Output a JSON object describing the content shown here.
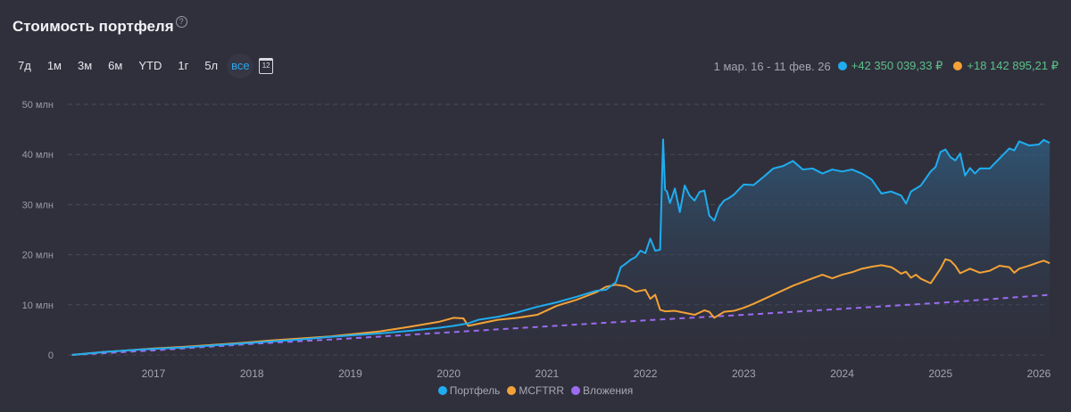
{
  "header": {
    "title": "Стоимость портфеля",
    "help_icon": "?"
  },
  "periods": [
    {
      "label": "7д",
      "active": false
    },
    {
      "label": "1м",
      "active": false
    },
    {
      "label": "3м",
      "active": false
    },
    {
      "label": "6м",
      "active": false
    },
    {
      "label": "YTD",
      "active": false
    },
    {
      "label": "1г",
      "active": false
    },
    {
      "label": "5л",
      "active": false
    },
    {
      "label": "все",
      "active": true
    }
  ],
  "calendar": {
    "icon": "calendar-icon",
    "day": "12"
  },
  "summary": {
    "range": "1 мар. 16 - 11 фев. 26",
    "portfolio_gain": "+42 350 039,33 ₽",
    "index_gain": "+18 142 895,21 ₽"
  },
  "colors": {
    "portfolio": "#1fadf0",
    "index": "#f4a236",
    "investments": "#9b6cf0",
    "gain": "#5cc08a",
    "background": "#30303c"
  },
  "chart_data": {
    "type": "line",
    "title": "Стоимость портфеля",
    "xlabel": "",
    "ylabel": "",
    "ylim": [
      0,
      50
    ],
    "y_unit": "млн",
    "xlim": [
      2016.17,
      2026.11
    ],
    "grid": true,
    "legend_position": "bottom",
    "y_ticks": [
      {
        "value": 0,
        "label": "0"
      },
      {
        "value": 10,
        "label": "10 млн"
      },
      {
        "value": 20,
        "label": "20 млн"
      },
      {
        "value": 30,
        "label": "30 млн"
      },
      {
        "value": 40,
        "label": "40 млн"
      },
      {
        "value": 50,
        "label": "50 млн"
      }
    ],
    "x_ticks": [
      "2017",
      "2018",
      "2019",
      "2020",
      "2021",
      "2022",
      "2023",
      "2024",
      "2025",
      "2026"
    ],
    "x_tick_values": [
      2017,
      2018,
      2019,
      2020,
      2021,
      2022,
      2023,
      2024,
      2025,
      2026
    ],
    "series": [
      {
        "name": "Портфель",
        "key": "portfolio",
        "x": [
          2016.17,
          2016.5,
          2016.8,
          2017.0,
          2017.3,
          2017.6,
          2017.9,
          2018.2,
          2018.5,
          2018.8,
          2019.0,
          2019.3,
          2019.6,
          2019.9,
          2020.05,
          2020.2,
          2020.3,
          2020.5,
          2020.7,
          2020.9,
          2021.1,
          2021.3,
          2021.5,
          2021.6,
          2021.7,
          2021.75,
          2021.8,
          2021.85,
          2021.9,
          2021.95,
          2022.0,
          2022.05,
          2022.1,
          2022.15,
          2022.18,
          2022.2,
          2022.22,
          2022.25,
          2022.3,
          2022.35,
          2022.4,
          2022.45,
          2022.5,
          2022.55,
          2022.6,
          2022.65,
          2022.7,
          2022.75,
          2022.8,
          2022.85,
          2022.9,
          2023.0,
          2023.1,
          2023.2,
          2023.3,
          2023.4,
          2023.5,
          2023.6,
          2023.7,
          2023.8,
          2023.9,
          2024.0,
          2024.1,
          2024.2,
          2024.3,
          2024.4,
          2024.5,
          2024.6,
          2024.65,
          2024.7,
          2024.8,
          2024.9,
          2024.95,
          2025.0,
          2025.05,
          2025.1,
          2025.15,
          2025.2,
          2025.25,
          2025.3,
          2025.35,
          2025.4,
          2025.5,
          2025.6,
          2025.7,
          2025.75,
          2025.8,
          2025.9,
          2026.0,
          2026.05,
          2026.11
        ],
        "values": [
          0.0,
          0.6,
          1.0,
          1.2,
          1.5,
          1.9,
          2.3,
          2.7,
          3.1,
          3.6,
          3.9,
          4.3,
          4.8,
          5.4,
          5.8,
          6.3,
          7.0,
          7.6,
          8.5,
          9.6,
          10.5,
          11.6,
          12.8,
          13.0,
          14.5,
          17.5,
          18.2,
          19.0,
          19.5,
          20.8,
          20.3,
          23.2,
          20.8,
          21.0,
          43.0,
          33.0,
          32.6,
          30.3,
          33.2,
          28.5,
          33.8,
          31.8,
          30.8,
          32.5,
          32.8,
          27.8,
          26.8,
          29.5,
          30.8,
          31.3,
          32.0,
          34.0,
          33.9,
          35.5,
          37.2,
          37.7,
          38.7,
          37.0,
          37.2,
          36.2,
          37.0,
          36.6,
          37.0,
          36.2,
          35.0,
          32.2,
          32.6,
          31.8,
          30.2,
          32.6,
          33.8,
          36.6,
          37.5,
          40.5,
          41.0,
          39.5,
          38.8,
          40.2,
          35.8,
          37.3,
          36.2,
          37.2,
          37.2,
          39.2,
          41.2,
          40.8,
          42.6,
          41.8,
          42.0,
          42.9,
          42.3
        ]
      },
      {
        "name": "MCFTRR",
        "key": "index",
        "x": [
          2016.17,
          2016.5,
          2016.8,
          2017.0,
          2017.3,
          2017.6,
          2017.9,
          2018.2,
          2018.5,
          2018.8,
          2019.0,
          2019.3,
          2019.6,
          2019.9,
          2020.05,
          2020.15,
          2020.2,
          2020.3,
          2020.5,
          2020.7,
          2020.9,
          2021.1,
          2021.3,
          2021.5,
          2021.6,
          2021.7,
          2021.8,
          2021.9,
          2022.0,
          2022.05,
          2022.1,
          2022.15,
          2022.2,
          2022.3,
          2022.4,
          2022.5,
          2022.6,
          2022.65,
          2022.7,
          2022.8,
          2022.9,
          2023.0,
          2023.1,
          2023.3,
          2023.5,
          2023.7,
          2023.8,
          2023.9,
          2024.0,
          2024.1,
          2024.2,
          2024.3,
          2024.4,
          2024.5,
          2024.55,
          2024.6,
          2024.65,
          2024.7,
          2024.75,
          2024.8,
          2024.9,
          2025.0,
          2025.05,
          2025.1,
          2025.15,
          2025.2,
          2025.3,
          2025.4,
          2025.5,
          2025.6,
          2025.7,
          2025.75,
          2025.8,
          2025.9,
          2026.0,
          2026.05,
          2026.11
        ],
        "values": [
          0.0,
          0.6,
          1.0,
          1.3,
          1.6,
          2.0,
          2.4,
          2.9,
          3.3,
          3.7,
          4.1,
          4.7,
          5.6,
          6.6,
          7.4,
          7.3,
          5.8,
          6.2,
          7.0,
          7.4,
          8.0,
          9.8,
          11.0,
          12.5,
          13.6,
          14.0,
          13.7,
          12.6,
          13.0,
          11.2,
          12.0,
          9.0,
          8.7,
          8.8,
          8.4,
          8.0,
          8.9,
          8.6,
          7.4,
          8.6,
          8.8,
          9.4,
          10.2,
          12.0,
          13.8,
          15.3,
          16.0,
          15.3,
          16.0,
          16.5,
          17.2,
          17.6,
          17.9,
          17.5,
          16.9,
          16.2,
          16.6,
          15.4,
          16.0,
          15.2,
          14.3,
          17.2,
          19.1,
          18.8,
          17.8,
          16.3,
          17.2,
          16.4,
          16.8,
          17.8,
          17.5,
          16.4,
          17.2,
          17.8,
          18.5,
          18.8,
          18.3
        ]
      },
      {
        "name": "Вложения",
        "key": "investments",
        "dashed": true,
        "x": [
          2016.17,
          2017.0,
          2018.0,
          2019.0,
          2020.0,
          2021.0,
          2022.0,
          2023.0,
          2024.0,
          2025.0,
          2026.11
        ],
        "values": [
          0.0,
          0.9,
          2.2,
          3.3,
          4.5,
          5.7,
          6.9,
          8.0,
          9.2,
          10.4,
          12.0
        ]
      }
    ]
  }
}
